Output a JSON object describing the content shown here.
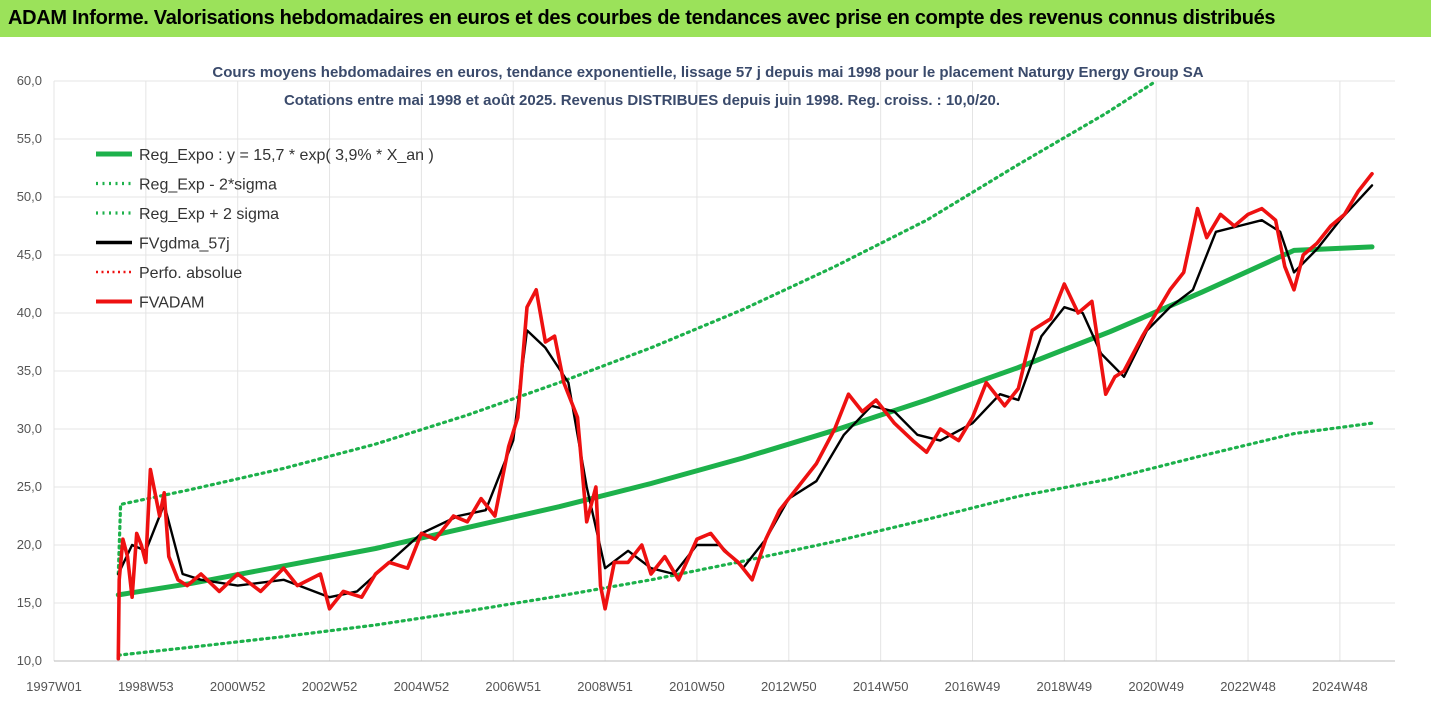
{
  "banner": {
    "title": "ADAM Informe. Valorisations hebdomadaires en euros et des courbes de tendances avec prise en compte des revenus connus distribués"
  },
  "colors": {
    "banner_bg": "#9be25a",
    "reg": "#1db14b",
    "sigma": "#1db14b",
    "fvg": "#000000",
    "fvadam": "#ee1111",
    "perfo": "#ee1111",
    "grid": "#e4e4e4",
    "title": "#3a4a6b"
  },
  "chart_data": {
    "type": "line",
    "title": "Cours moyens hebdomadaires en euros, tendance exponentielle, lissage 57 j depuis mai 1998 pour le placement Naturgy Energy Group SA",
    "subtitle": "Cotations entre mai 1998 et août 2025. Revenus DISTRIBUES depuis juin 1998. Reg. croiss. : 10,0/20.",
    "xlabel": "",
    "ylabel": "",
    "ylim": [
      10,
      60
    ],
    "xlim": [
      1997.0,
      2026.2
    ],
    "y_ticks": [
      "10,0",
      "15,0",
      "20,0",
      "25,0",
      "30,0",
      "35,0",
      "40,0",
      "45,0",
      "50,0",
      "55,0",
      "60,0"
    ],
    "x_ticks": [
      "1997W01",
      "1998W53",
      "2000W52",
      "2002W52",
      "2004W52",
      "2006W51",
      "2008W51",
      "2010W50",
      "2012W50",
      "2014W50",
      "2016W49",
      "2018W49",
      "2020W49",
      "2022W48",
      "2024W48"
    ],
    "x_tick_years": [
      1997.0,
      1999.0,
      2001.0,
      2003.0,
      2005.0,
      2007.0,
      2009.0,
      2011.0,
      2013.0,
      2015.0,
      2017.0,
      2019.0,
      2021.0,
      2023.0,
      2025.0
    ],
    "grid": true,
    "legend_position": "top-left",
    "legend": [
      "Reg_Expo : y = 15,7 * exp( 3,9% *  X_an )",
      "Reg_Exp - 2*sigma",
      "Reg_Exp + 2 sigma",
      "FVgdma_57j",
      "Perfo. absolue",
      "FVADAM"
    ],
    "series": [
      {
        "name": "Reg_Expo : y = 15,7 * exp( 3,9% *  X_an )",
        "style": "solid-thick",
        "color": "#1db14b",
        "x": [
          1998.4,
          2000,
          2002,
          2004,
          2006,
          2008,
          2010,
          2012,
          2014,
          2016,
          2018,
          2020,
          2022,
          2024,
          2025.7
        ],
        "values": [
          15.7,
          16.7,
          18.2,
          19.7,
          21.5,
          23.3,
          25.3,
          27.5,
          29.9,
          32.5,
          35.3,
          38.4,
          41.8,
          45.4,
          45.7
        ]
      },
      {
        "name": "Reg_Exp - 2*sigma",
        "style": "dotted",
        "color": "#1db14b",
        "x": [
          1998.4,
          2000,
          2002,
          2004,
          2006,
          2008,
          2010,
          2012,
          2014,
          2016,
          2018,
          2020,
          2022,
          2024,
          2025.7
        ],
        "values": [
          10.5,
          11.2,
          12.1,
          13.1,
          14.3,
          15.6,
          17.0,
          18.6,
          20.3,
          22.2,
          24.2,
          25.7,
          27.7,
          29.6,
          30.5
        ]
      },
      {
        "name": "Reg_Exp + 2 sigma",
        "style": "dotted",
        "color": "#1db14b",
        "x": [
          1998.4,
          1998.45,
          2000,
          2002,
          2004,
          2006,
          2008,
          2010,
          2012,
          2014,
          2016,
          2018,
          2019.9,
          2021.0
        ],
        "values": [
          17.5,
          23.5,
          24.8,
          26.6,
          28.7,
          31.2,
          34.0,
          37.0,
          40.3,
          44.0,
          48.0,
          52.8,
          57.2,
          60.0
        ]
      },
      {
        "name": "FVgdma_57j",
        "style": "solid",
        "color": "#000000",
        "x": [
          1998.4,
          1998.7,
          1999.0,
          1999.4,
          1999.8,
          2000.2,
          2001.0,
          2002.0,
          2003.0,
          2003.6,
          2004.3,
          2005.0,
          2005.8,
          2006.4,
          2007.0,
          2007.3,
          2007.7,
          2008.2,
          2008.6,
          2009.0,
          2009.5,
          2010.0,
          2010.5,
          2011.0,
          2011.5,
          2012.0,
          2012.5,
          2013.0,
          2013.6,
          2014.2,
          2014.8,
          2015.3,
          2015.8,
          2016.3,
          2017.0,
          2017.6,
          2018.0,
          2018.5,
          2019.0,
          2019.4,
          2019.8,
          2020.3,
          2020.8,
          2021.3,
          2021.8,
          2022.3,
          2022.8,
          2023.3,
          2023.7,
          2024.0,
          2024.5,
          2025.0,
          2025.7
        ],
        "values": [
          17.5,
          20.0,
          19.5,
          23.5,
          17.5,
          17.0,
          16.5,
          17.0,
          15.5,
          16.0,
          18.5,
          21.0,
          22.5,
          23.0,
          29.0,
          38.5,
          37.0,
          34.0,
          25.0,
          18.0,
          19.5,
          18.0,
          17.5,
          20.0,
          20.0,
          18.0,
          20.5,
          24.0,
          25.5,
          29.5,
          32.0,
          31.5,
          29.5,
          29.0,
          30.5,
          33.0,
          32.5,
          38.0,
          40.5,
          40.0,
          36.5,
          34.5,
          38.5,
          40.5,
          42.0,
          47.0,
          47.5,
          48.0,
          47.0,
          43.5,
          45.5,
          48.0,
          51.0
        ]
      },
      {
        "name": "FVADAM",
        "style": "solid-thick",
        "color": "#ee1111",
        "x": [
          1998.4,
          1998.42,
          1998.5,
          1998.6,
          1998.7,
          1998.8,
          1998.9,
          1999.0,
          1999.1,
          1999.3,
          1999.4,
          1999.5,
          1999.7,
          1999.9,
          2000.2,
          2000.6,
          2001.0,
          2001.5,
          2002.0,
          2002.3,
          2002.8,
          2003.0,
          2003.3,
          2003.7,
          2004.0,
          2004.3,
          2004.7,
          2005.0,
          2005.3,
          2005.7,
          2006.0,
          2006.3,
          2006.6,
          2006.9,
          2007.1,
          2007.3,
          2007.5,
          2007.7,
          2007.9,
          2008.1,
          2008.4,
          2008.6,
          2008.8,
          2008.9,
          2009.0,
          2009.2,
          2009.5,
          2009.8,
          2010.0,
          2010.3,
          2010.6,
          2011.0,
          2011.3,
          2011.6,
          2011.9,
          2012.2,
          2012.5,
          2012.8,
          2013.2,
          2013.6,
          2014.0,
          2014.3,
          2014.6,
          2014.9,
          2015.3,
          2015.7,
          2016.0,
          2016.3,
          2016.7,
          2017.0,
          2017.3,
          2017.7,
          2018.0,
          2018.3,
          2018.7,
          2019.0,
          2019.3,
          2019.6,
          2019.9,
          2020.1,
          2020.3,
          2020.7,
          2021.0,
          2021.3,
          2021.6,
          2021.9,
          2022.1,
          2022.4,
          2022.7,
          2023.0,
          2023.3,
          2023.6,
          2023.8,
          2024.0,
          2024.2,
          2024.5,
          2024.8,
          2025.1,
          2025.4,
          2025.7
        ],
        "values": [
          10.2,
          17.0,
          20.5,
          19.0,
          15.5,
          21.0,
          20.0,
          18.5,
          26.5,
          22.5,
          24.5,
          19.0,
          17.0,
          16.5,
          17.5,
          16.0,
          17.5,
          16.0,
          18.0,
          16.5,
          17.5,
          14.5,
          16.0,
          15.5,
          17.5,
          18.5,
          18.0,
          21.0,
          20.5,
          22.5,
          22.0,
          24.0,
          22.5,
          28.5,
          31.0,
          40.5,
          42.0,
          37.5,
          38.0,
          34.0,
          31.0,
          22.0,
          25.0,
          16.5,
          14.5,
          18.5,
          18.5,
          20.0,
          17.5,
          19.0,
          17.0,
          20.5,
          21.0,
          19.5,
          18.5,
          17.0,
          20.5,
          23.0,
          25.0,
          27.0,
          30.0,
          33.0,
          31.5,
          32.5,
          30.5,
          29.0,
          28.0,
          30.0,
          29.0,
          31.0,
          34.0,
          32.0,
          33.5,
          38.5,
          39.5,
          42.5,
          40.0,
          41.0,
          33.0,
          34.5,
          35.0,
          38.0,
          40.0,
          42.0,
          43.5,
          49.0,
          46.5,
          48.5,
          47.5,
          48.5,
          49.0,
          48.0,
          44.0,
          42.0,
          45.0,
          46.0,
          47.5,
          48.5,
          50.5,
          52.0
        ]
      },
      {
        "name": "Perfo. absolue",
        "style": "dotted",
        "color": "#ee1111",
        "x": [],
        "values": []
      }
    ]
  }
}
